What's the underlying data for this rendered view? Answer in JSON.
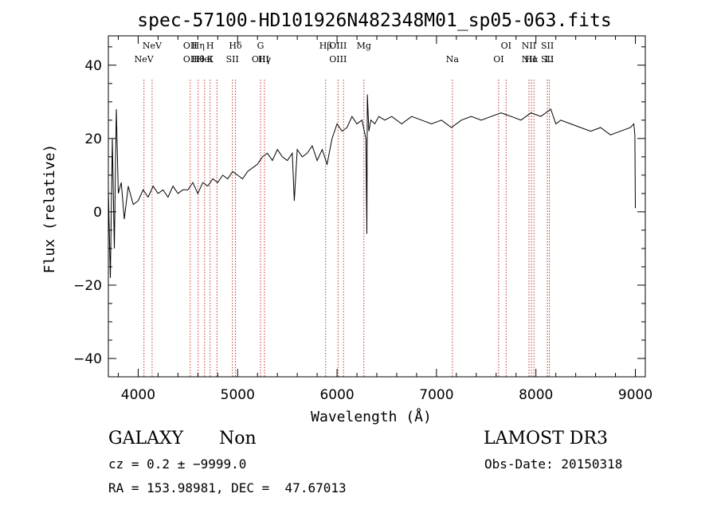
{
  "chart_data": {
    "type": "line",
    "title": "spec-57100-HD101926N482348M01_sp05-063.fits",
    "xlabel": "Wavelength (Å)",
    "ylabel": "Flux (relative)",
    "xlim": [
      3700,
      9100
    ],
    "ylim": [
      -45,
      48
    ],
    "xticks": [
      4000,
      5000,
      6000,
      7000,
      8000,
      9000
    ],
    "xtick_labels": [
      "4000",
      "5000",
      "6000",
      "7000",
      "8000",
      "9000"
    ],
    "yticks": [
      -40,
      -20,
      0,
      20,
      40
    ],
    "ytick_labels": [
      "−40",
      "−20",
      "0",
      "20",
      "40"
    ],
    "series": [
      {
        "name": "spectrum",
        "x": [
          3700,
          3720,
          3740,
          3760,
          3780,
          3800,
          3830,
          3860,
          3900,
          3950,
          4000,
          4050,
          4100,
          4150,
          4200,
          4250,
          4300,
          4350,
          4400,
          4450,
          4500,
          4550,
          4600,
          4650,
          4700,
          4750,
          4800,
          4850,
          4900,
          4950,
          5000,
          5050,
          5100,
          5150,
          5200,
          5250,
          5300,
          5350,
          5400,
          5450,
          5500,
          5550,
          5570,
          5600,
          5650,
          5700,
          5750,
          5800,
          5850,
          5900,
          5950,
          6000,
          6050,
          6100,
          6150,
          6200,
          6250,
          6290,
          6300,
          6305,
          6320,
          6340,
          6380,
          6420,
          6480,
          6550,
          6650,
          6750,
          6850,
          6950,
          7050,
          7150,
          7250,
          7350,
          7450,
          7550,
          7650,
          7750,
          7850,
          7950,
          8050,
          8150,
          8200,
          8250,
          8350,
          8450,
          8550,
          8650,
          8750,
          8850,
          8950,
          8985,
          8995,
          9000
        ],
        "y": [
          6,
          -18,
          20,
          -10,
          28,
          5,
          8,
          -2,
          7,
          2,
          3,
          6,
          4,
          7,
          5,
          6,
          4,
          7,
          5,
          6,
          6,
          8,
          5,
          8,
          7,
          9,
          8,
          10,
          9,
          11,
          10,
          9,
          11,
          12,
          13,
          15,
          16,
          14,
          17,
          15,
          14,
          16,
          3,
          17,
          15,
          16,
          18,
          14,
          17,
          13,
          20,
          24,
          22,
          23,
          26,
          24,
          25,
          20,
          -6,
          32,
          22,
          25,
          24,
          26,
          25,
          26,
          24,
          26,
          25,
          24,
          25,
          23,
          25,
          26,
          25,
          26,
          27,
          26,
          25,
          27,
          26,
          28,
          24,
          25,
          24,
          23,
          22,
          23,
          21,
          22,
          23,
          24,
          21,
          1
        ]
      }
    ],
    "line_markers": [
      {
        "x": 4058,
        "top": "",
        "bottom": "NeV"
      },
      {
        "x": 4140,
        "top": "NeV",
        "bottom": ""
      },
      {
        "x": 4523,
        "top": "OII",
        "bottom": "OII"
      },
      {
        "x": 4603,
        "top": "Hη",
        "bottom": "Hθ"
      },
      {
        "x": 4668,
        "top": "",
        "bottom": "HeI"
      },
      {
        "x": 4723,
        "top": "H",
        "bottom": "K"
      },
      {
        "x": 4792,
        "top": "",
        "bottom": ""
      },
      {
        "x": 4948,
        "top": "",
        "bottom": "SII"
      },
      {
        "x": 4978,
        "top": "Hδ",
        "bottom": ""
      },
      {
        "x": 5230,
        "top": "G",
        "bottom": "OIII"
      },
      {
        "x": 5270,
        "top": "",
        "bottom": "Hγ"
      },
      {
        "x": 5885,
        "top": "Hβ",
        "bottom": ""
      },
      {
        "x": 6010,
        "top": "OIII",
        "bottom": "OIII"
      },
      {
        "x": 6065,
        "top": "",
        "bottom": ""
      },
      {
        "x": 6270,
        "top": "Mg",
        "bottom": ""
      },
      {
        "x": 7160,
        "top": "",
        "bottom": "Na"
      },
      {
        "x": 7625,
        "top": "",
        "bottom": "OI"
      },
      {
        "x": 7700,
        "top": "OI",
        "bottom": ""
      },
      {
        "x": 7930,
        "top": "NII",
        "bottom": "NII"
      },
      {
        "x": 7955,
        "top": "",
        "bottom": "Hα"
      },
      {
        "x": 7980,
        "top": "",
        "bottom": ""
      },
      {
        "x": 8115,
        "top": "SII",
        "bottom": "SII"
      },
      {
        "x": 8135,
        "top": "",
        "bottom": "Li"
      }
    ]
  },
  "info": {
    "classification": "GALAXY",
    "subclass": "Non",
    "survey": "LAMOST DR3",
    "redshift": "cz = 0.2 ± −9999.0",
    "obs_date": "Obs-Date: 20150318",
    "coords": "RA = 153.98981, DEC =  47.67013"
  }
}
